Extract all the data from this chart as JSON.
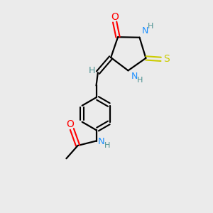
{
  "bg_color": "#ebebeb",
  "bond_color": "#000000",
  "N_color": "#1e90ff",
  "O_color": "#ff0000",
  "S_color": "#cccc00",
  "H_color": "#4a9090",
  "figsize": [
    3.0,
    3.0
  ],
  "dpi": 100,
  "xlim": [
    0,
    10
  ],
  "ylim": [
    0,
    10
  ]
}
